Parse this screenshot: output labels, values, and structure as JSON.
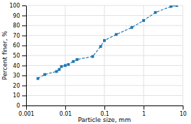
{
  "chart_data": {
    "type": "line",
    "xlabel": "Particle size, mm",
    "ylabel": "Percent finer, %",
    "x": [
      0.002,
      0.003,
      0.006,
      0.007,
      0.008,
      0.01,
      0.012,
      0.016,
      0.02,
      0.05,
      0.08,
      0.1,
      0.2,
      0.5,
      1.0,
      2.0,
      5.0,
      7.0
    ],
    "values": [
      27,
      31,
      34,
      36,
      39,
      40,
      41,
      44,
      46,
      49,
      59,
      65,
      71,
      78,
      85,
      93,
      99,
      100
    ],
    "xlim": [
      0.001,
      10
    ],
    "ylim": [
      0,
      100
    ],
    "xticks": [
      0.001,
      0.01,
      0.1,
      1,
      10
    ],
    "yticks": [
      0,
      10,
      20,
      30,
      40,
      50,
      60,
      70,
      80,
      90,
      100
    ],
    "log": "x",
    "grid": true,
    "marker": "square",
    "line_style": "dashed"
  }
}
